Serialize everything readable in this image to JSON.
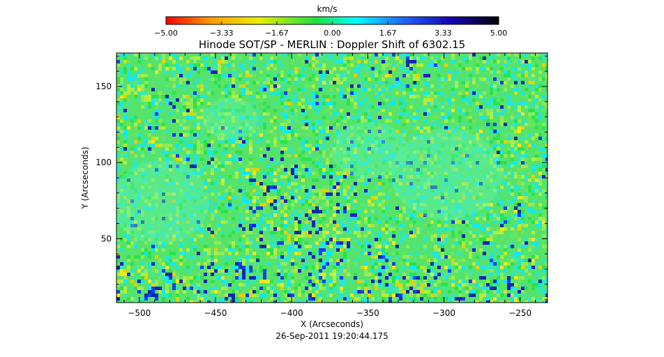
{
  "chart_data": {
    "type": "heatmap",
    "title": "Hinode SOT/SP - MERLIN : Doppler Shift of 6302.15",
    "xlabel": "X (Arcseconds)",
    "ylabel": "Y (Arcseconds)",
    "timestamp": "26-Sep-2011 19:20:44.175",
    "xlim": [
      -515,
      -232
    ],
    "ylim": [
      8,
      172
    ],
    "xticks": [
      -500,
      -450,
      -400,
      -350,
      -300,
      -250
    ],
    "yticks": [
      50,
      100,
      150
    ],
    "xtick_labels": [
      "−500",
      "−450",
      "−400",
      "−350",
      "−300",
      "−250"
    ],
    "ytick_labels": [
      "50",
      "100",
      "150"
    ],
    "colorbar": {
      "label": "km/s",
      "range": [
        -5.0,
        5.0
      ],
      "ticks": [
        -5.0,
        -3.33,
        -1.67,
        0.0,
        1.67,
        3.33,
        5.0
      ],
      "tick_labels": [
        "−5.00",
        "−3.33",
        "−1.67",
        "0.00",
        "1.67",
        "3.33",
        "5.00"
      ],
      "colors": [
        "#ff0000",
        "#ffa000",
        "#e6f000",
        "#20e040",
        "#00ffff",
        "#2060ff",
        "#1400b4",
        "#000000"
      ]
    }
  }
}
